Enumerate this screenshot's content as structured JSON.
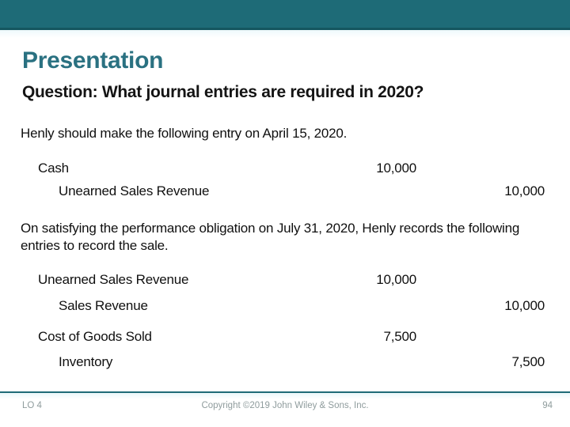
{
  "slide": {
    "title": "Presentation",
    "subtitle": "Question: What journal entries are required in 2020?",
    "paragraph1": "Henly should make the following entry on April 15, 2020.",
    "paragraph2": "On satisfying the performance obligation on July 31, 2020, Henly records the following entries to record the sale.",
    "journal_entries_april": [
      {
        "account": "Cash",
        "debit": "10,000",
        "credit": ""
      },
      {
        "account": "Unearned Sales Revenue",
        "debit": "",
        "credit": "10,000"
      }
    ],
    "journal_entries_july": [
      {
        "account": "Unearned Sales Revenue",
        "debit": "10,000",
        "credit": ""
      },
      {
        "account": "Sales Revenue",
        "debit": "",
        "credit": "10,000"
      },
      {
        "account": "Cost of Goods Sold",
        "debit": "7,500",
        "credit": ""
      },
      {
        "account": "Inventory",
        "debit": "",
        "credit": "7,500"
      }
    ],
    "footer": {
      "learning_objective": "LO 4",
      "copyright": "Copyright ©2019 John Wiley & Sons, Inc.",
      "page_number": "94"
    },
    "colors": {
      "banner": "#1e6b77",
      "banner_edge": "#15565f",
      "title_text": "#2a7181",
      "footer_rule": "#1e6b77",
      "footer_text": "#8f9c9d"
    }
  }
}
